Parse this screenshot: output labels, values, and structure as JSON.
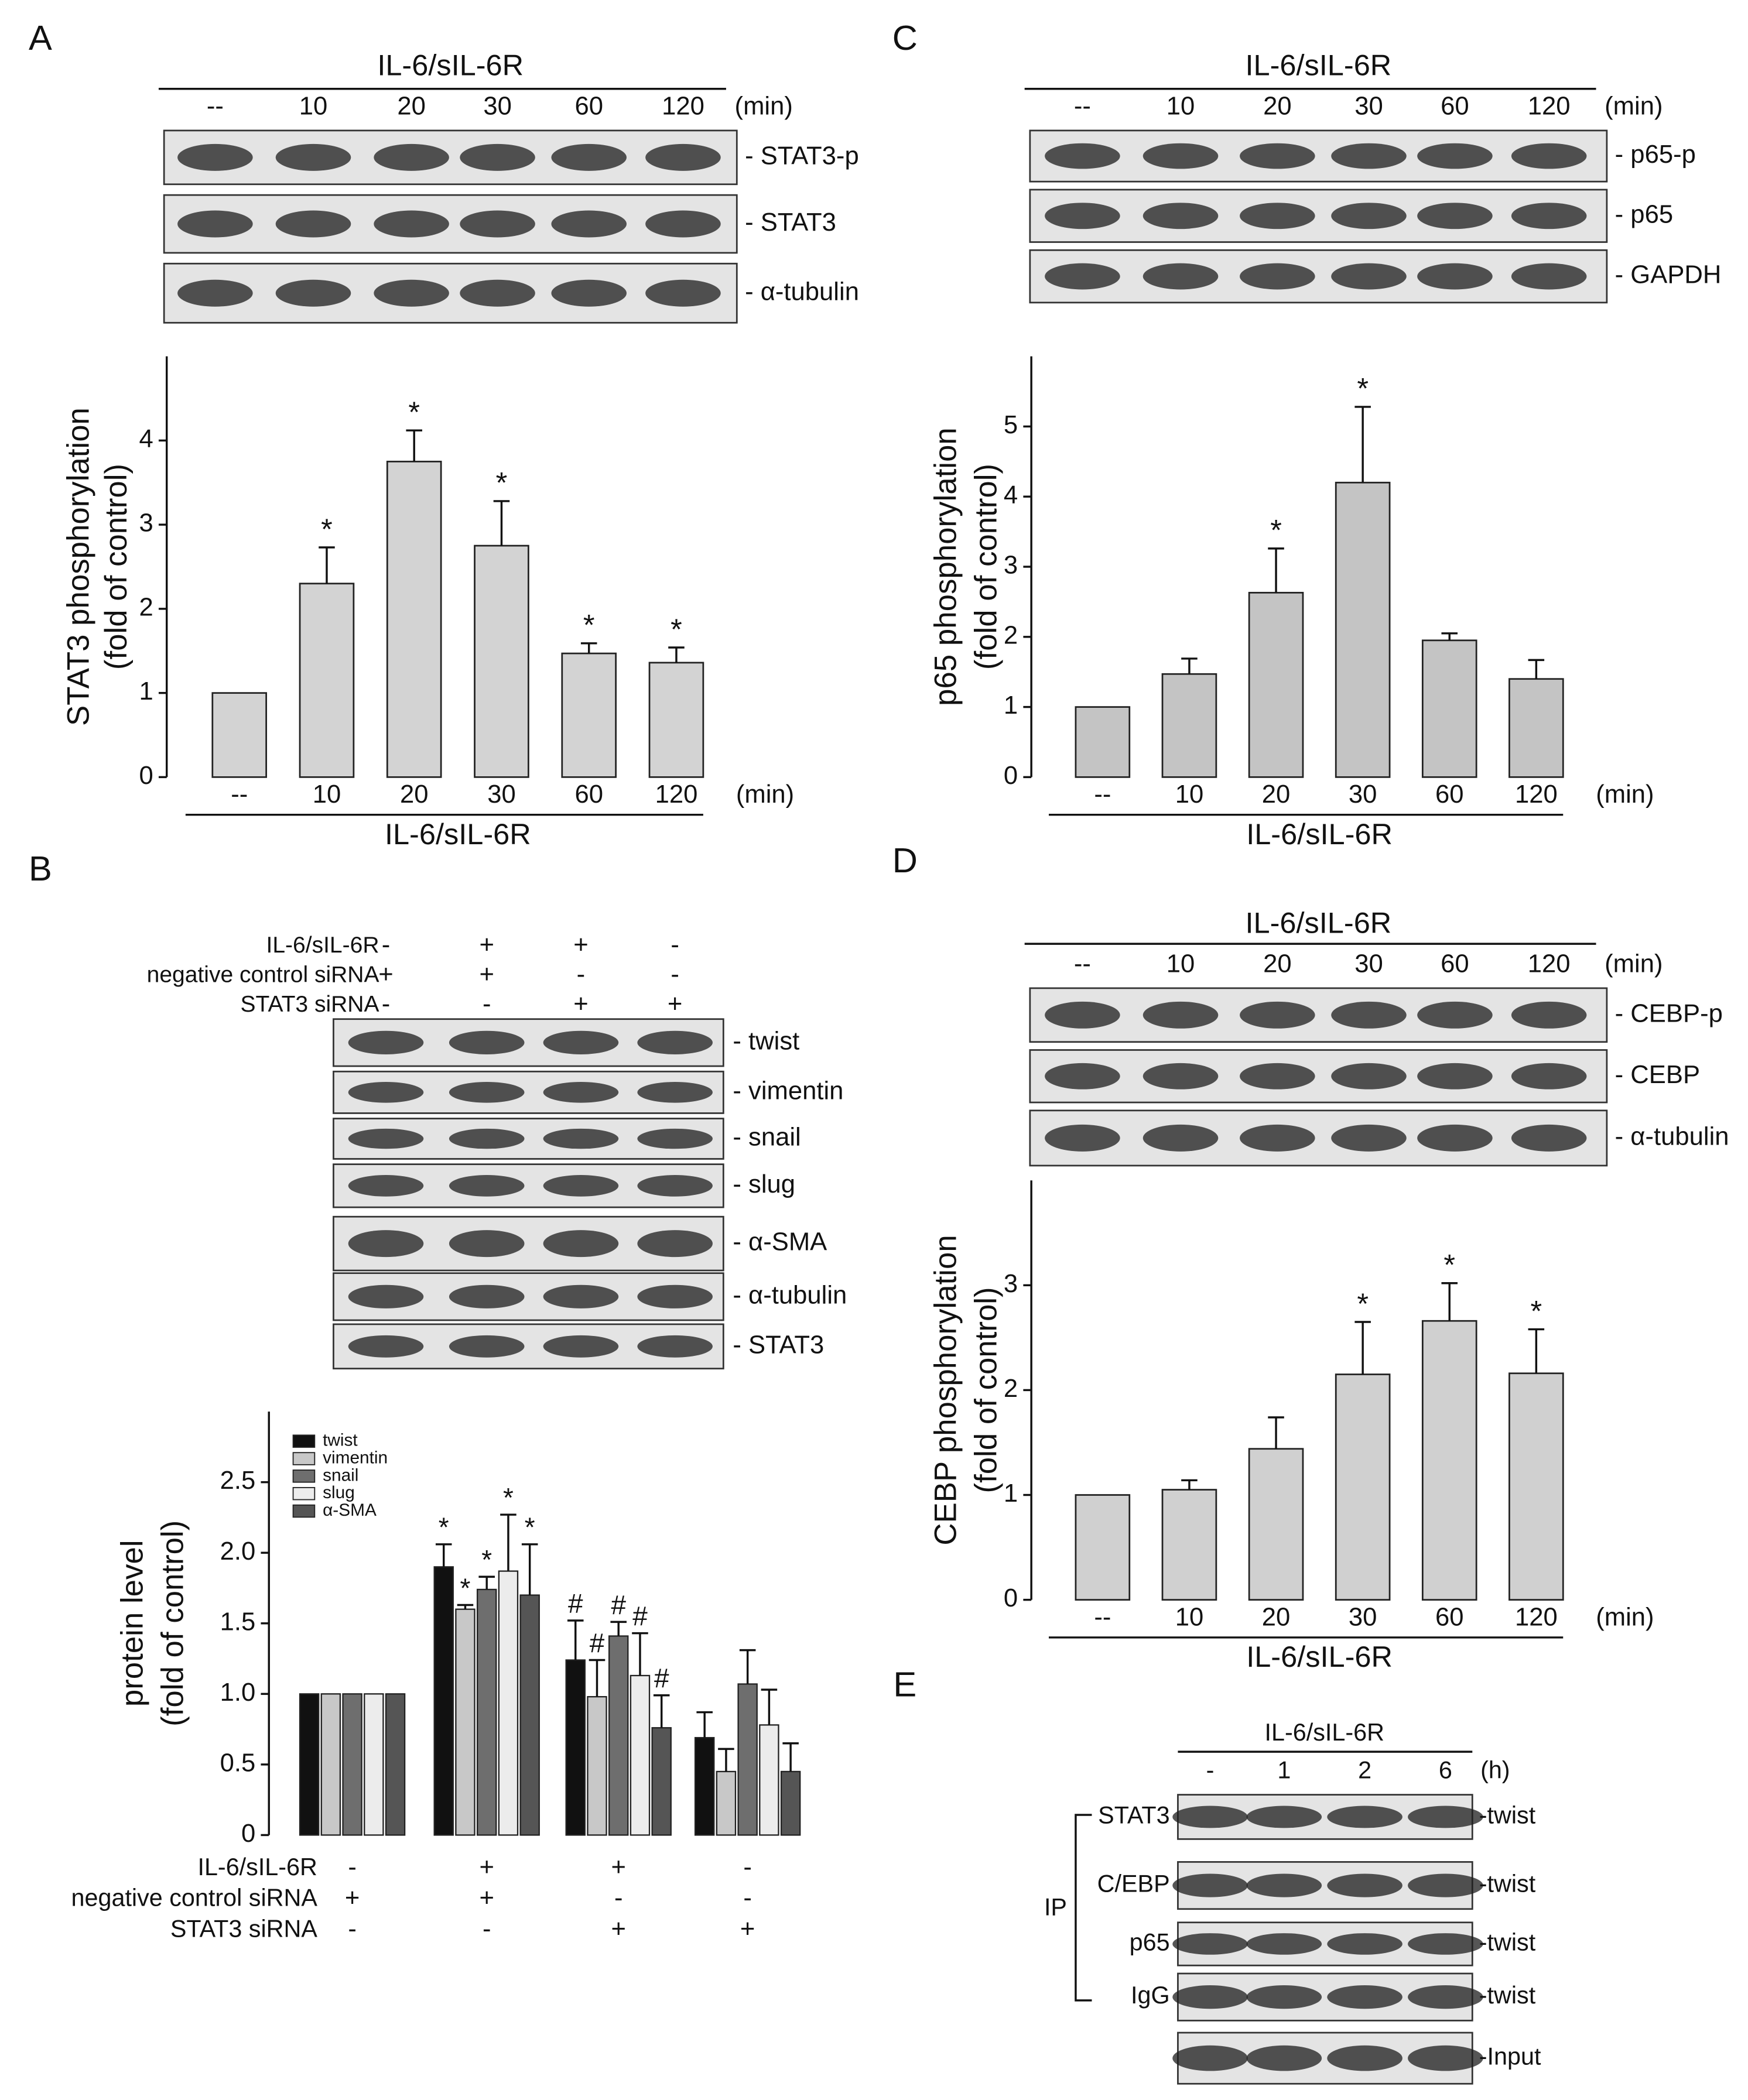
{
  "panel_letters": [
    "A",
    "B",
    "C",
    "D",
    "E"
  ],
  "blots": {
    "A": {
      "header": "IL-6/sIL-6R",
      "lanes": [
        "--",
        "10",
        "20",
        "30",
        "60",
        "120"
      ],
      "unit": "(min)",
      "rows": [
        "- STAT3-p",
        "- STAT3",
        "- α-tubulin"
      ]
    },
    "B": {
      "conditions": [
        {
          "label": "IL-6/sIL-6R",
          "marks": [
            "-",
            "+",
            "+",
            "-"
          ]
        },
        {
          "label": "negative control siRNA",
          "marks": [
            "+",
            "+",
            "-",
            "-"
          ]
        },
        {
          "label": "STAT3 siRNA",
          "marks": [
            "-",
            "-",
            "+",
            "+"
          ]
        }
      ],
      "rows": [
        "- twist",
        "- vimentin",
        "- snail",
        "- slug",
        "- α-SMA",
        "- α-tubulin",
        "- STAT3"
      ]
    },
    "C": {
      "header": "IL-6/sIL-6R",
      "lanes": [
        "--",
        "10",
        "20",
        "30",
        "60",
        "120"
      ],
      "unit": "(min)",
      "rows": [
        "- p65-p",
        "- p65",
        "- GAPDH"
      ]
    },
    "D": {
      "header": "IL-6/sIL-6R",
      "lanes": [
        "--",
        "10",
        "20",
        "30",
        "60",
        "120"
      ],
      "unit": "(min)",
      "rows": [
        "- CEBP-p",
        "- CEBP",
        "- α-tubulin"
      ]
    },
    "E": {
      "header": "IL-6/sIL-6R",
      "lanes": [
        "-",
        "1",
        "2",
        "6"
      ],
      "unit": "(h)",
      "group": "IP",
      "rows": [
        {
          "left": "STAT3",
          "right": "-twist"
        },
        {
          "left": "C/EBP",
          "right": "-twist"
        },
        {
          "left": "p65",
          "right": "-twist"
        },
        {
          "left": "IgG",
          "right": "-twist"
        },
        {
          "right": "-Input"
        }
      ]
    }
  },
  "chart_data": [
    {
      "type": "bar",
      "ylabel": [
        "STAT3 phosphorylation",
        "(fold of control)"
      ],
      "xlabel": "IL-6/sIL-6R",
      "x_unit": "(min)",
      "categories": [
        "--",
        "10",
        "20",
        "30",
        "60",
        "120"
      ],
      "values": [
        1,
        2.3,
        3.75,
        2.75,
        1.47,
        1.36
      ],
      "errors": [
        0,
        0.43,
        0.37,
        0.53,
        0.12,
        0.18
      ],
      "annotations": [
        null,
        "*",
        "*",
        "*",
        "*",
        "*"
      ],
      "color": "#d3d3d3",
      "ylim": [
        0,
        5
      ],
      "yticks": [
        0,
        1,
        2,
        3,
        4
      ]
    },
    {
      "type": "grouped_bar",
      "ylabel": [
        "protein level",
        "(fold of control)"
      ],
      "conditions": [
        {
          "label": "IL-6/sIL-6R",
          "marks": [
            "-",
            "+",
            "+",
            "-"
          ]
        },
        {
          "label": "negative control siRNA",
          "marks": [
            "+",
            "+",
            "-",
            "-"
          ]
        },
        {
          "label": "STAT3 siRNA",
          "marks": [
            "-",
            "-",
            "+",
            "+"
          ]
        }
      ],
      "series": [
        {
          "name": "twist",
          "color": "#111111",
          "values": [
            1,
            1.9,
            1.24,
            0.69
          ],
          "errors": [
            0,
            0.16,
            0.28,
            0.18
          ],
          "annotations": [
            null,
            "*",
            "#",
            null
          ]
        },
        {
          "name": "vimentin",
          "color": "#c8c8c8",
          "values": [
            1,
            1.6,
            0.98,
            0.45
          ],
          "errors": [
            0,
            0.03,
            0.26,
            0.16
          ],
          "annotations": [
            null,
            "*",
            "#",
            null
          ]
        },
        {
          "name": "snail",
          "color": "#6e6e6e",
          "values": [
            1,
            1.74,
            1.41,
            1.07
          ],
          "errors": [
            0,
            0.09,
            0.1,
            0.24
          ],
          "annotations": [
            null,
            "*",
            "#",
            null
          ]
        },
        {
          "name": "slug",
          "color": "#ececec",
          "values": [
            1,
            1.87,
            1.13,
            0.78
          ],
          "errors": [
            0,
            0.4,
            0.3,
            0.25
          ],
          "annotations": [
            null,
            "*",
            "#",
            null
          ]
        },
        {
          "name": "α-SMA",
          "color": "#555555",
          "values": [
            1,
            1.7,
            0.76,
            0.45
          ],
          "errors": [
            0,
            0.36,
            0.23,
            0.2
          ],
          "annotations": [
            null,
            "*",
            "#",
            null
          ]
        }
      ],
      "ylim": [
        0,
        3
      ],
      "yticks": [
        0,
        0.5,
        {
          "value": 1,
          "label": "1.0"
        },
        1.5,
        {
          "value": 2,
          "label": "2.0"
        },
        2.5
      ]
    },
    {
      "type": "bar",
      "ylabel": [
        "p65 phosphorylation",
        "(fold of control)"
      ],
      "xlabel": "IL-6/sIL-6R",
      "x_unit": "(min)",
      "categories": [
        "--",
        "10",
        "20",
        "30",
        "60",
        "120"
      ],
      "values": [
        1,
        1.47,
        2.63,
        4.2,
        1.95,
        1.4
      ],
      "errors": [
        0,
        0.22,
        0.63,
        1.08,
        0.1,
        0.27
      ],
      "annotations": [
        null,
        null,
        "*",
        "*",
        null,
        null
      ],
      "color": "#c4c4c4",
      "ylim": [
        0,
        6
      ],
      "yticks": [
        0,
        1,
        2,
        3,
        4,
        5
      ]
    },
    {
      "type": "bar",
      "ylabel": [
        "CEBP phosphorylation",
        "(fold of control)"
      ],
      "xlabel": "IL-6/sIL-6R",
      "x_unit": "(min)",
      "categories": [
        "--",
        "10",
        "20",
        "30",
        "60",
        "120"
      ],
      "values": [
        1,
        1.05,
        1.44,
        2.15,
        2.66,
        2.16
      ],
      "errors": [
        0,
        0.09,
        0.3,
        0.5,
        0.36,
        0.42
      ],
      "annotations": [
        null,
        null,
        null,
        "*",
        "*",
        "*"
      ],
      "color": "#d0d0d0",
      "ylim": [
        0,
        4
      ],
      "yticks": [
        0,
        1,
        2,
        3
      ]
    }
  ]
}
